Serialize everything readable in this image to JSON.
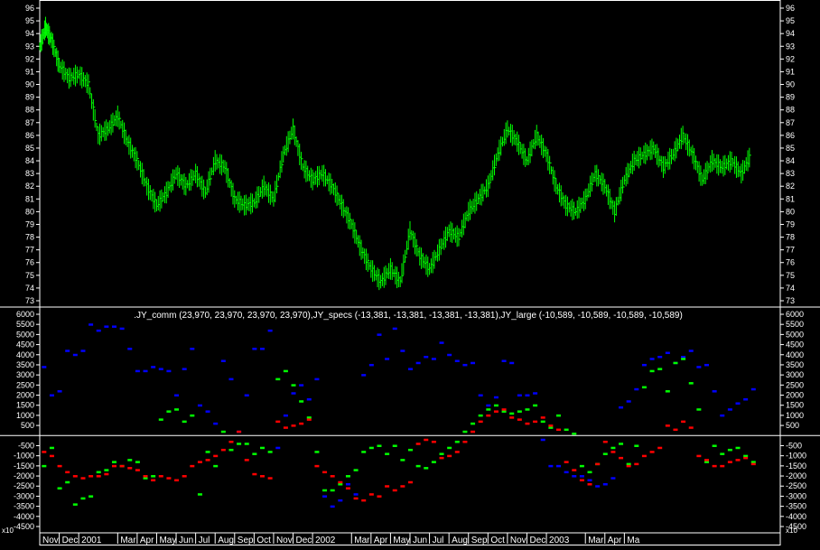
{
  "chart_data": [
    {
      "type": "line",
      "ylim": [
        73,
        96
      ],
      "y_ticks": [
        73,
        74,
        75,
        76,
        77,
        78,
        79,
        80,
        81,
        82,
        83,
        84,
        85,
        86,
        87,
        88,
        89,
        90,
        91,
        92,
        93,
        94,
        95,
        96
      ],
      "x_range": [
        0,
        38
      ],
      "color": "#00ff00",
      "series": [
        {
          "x": [
            0,
            0.3,
            0.6,
            1,
            1.5,
            2,
            2.5,
            3,
            3.5,
            4,
            4.5,
            5,
            5.5,
            6,
            6.5,
            7,
            7.5,
            8,
            8.5,
            9,
            9.5,
            10,
            10.5,
            11,
            11.5,
            12,
            12.5,
            13,
            13.5,
            14,
            14.5,
            15,
            15.5,
            16,
            16.5,
            17,
            17.5,
            18,
            18.5,
            19,
            19.5,
            20,
            20.5,
            21,
            21.5,
            22,
            22.5,
            23,
            23.5,
            24,
            24.5,
            25,
            25.5,
            26,
            26.5,
            27,
            27.5,
            28,
            28.5,
            29,
            29.5,
            30,
            30.5,
            31,
            31.5,
            32,
            32.5,
            33,
            33.5,
            34,
            34.5,
            35,
            35.5,
            36,
            36.5
          ],
          "y": [
            93,
            94.5,
            93.5,
            91.5,
            90.5,
            90.8,
            90,
            86,
            86.5,
            87.5,
            85.5,
            84,
            82,
            80.5,
            81.5,
            83,
            82,
            83,
            81.5,
            84,
            83.5,
            81,
            80.5,
            80.7,
            82,
            81,
            84.5,
            86.5,
            83.5,
            82.5,
            83,
            82,
            80.5,
            79,
            77,
            75.5,
            74.5,
            75.5,
            74.5,
            78.5,
            76.5,
            75.5,
            77,
            78.5,
            78,
            80,
            81,
            82,
            84.5,
            86.5,
            85.5,
            84,
            86,
            84.5,
            82,
            80.5,
            80,
            81,
            83,
            82,
            80,
            82.5,
            84,
            84.5,
            85,
            83.5,
            84.5,
            86,
            84.5,
            82.5,
            84,
            83.5,
            84,
            83,
            84.5
          ]
        }
      ]
    },
    {
      "type": "scatter",
      "title": ".JY_comm (23,970, 23,970, 23,970, 23,970),JY_specs (-13,381, -13,381, -13,381, -13,381),JY_large (-10,589, -10,589, -10,589, -10,589)",
      "ylim": [
        -4500,
        6000
      ],
      "y_ticks": [
        6000,
        5500,
        5000,
        4500,
        4000,
        3500,
        3000,
        2500,
        2000,
        1500,
        1000,
        500,
        -500,
        -1000,
        -1500,
        -2000,
        -2500,
        -3000,
        -3500,
        -4000,
        -4500
      ],
      "y_tick_labels": [
        "6000",
        "5500",
        "5000",
        "4500",
        "4000",
        "3500",
        "3000",
        "2500",
        "2000",
        "1500",
        "1000",
        "500",
        "-500",
        "-1000",
        "-1500",
        "-2000",
        "-2500",
        "-3000",
        "-3500",
        "-4000",
        "-4500"
      ],
      "scale_label": "x10",
      "x_range": [
        0,
        38
      ],
      "series": [
        {
          "name": "JY_comm",
          "color": "#0000ff",
          "x": [
            0.2,
            0.6,
            1.0,
            1.4,
            1.8,
            2.2,
            2.6,
            3.0,
            3.4,
            3.8,
            4.2,
            4.6,
            5.0,
            5.4,
            5.8,
            6.2,
            6.6,
            7.0,
            7.4,
            7.8,
            8.2,
            8.6,
            9.0,
            9.4,
            9.8,
            10.2,
            10.6,
            11.0,
            11.4,
            11.8,
            12.2,
            12.6,
            13.0,
            13.4,
            13.8,
            14.2,
            14.6,
            15.0,
            15.4,
            15.8,
            16.2,
            16.6,
            17.0,
            17.4,
            17.8,
            18.2,
            18.6,
            19.0,
            19.4,
            19.8,
            20.2,
            20.6,
            21.0,
            21.4,
            21.8,
            22.2,
            22.6,
            23.0,
            23.4,
            23.8,
            24.2,
            24.6,
            25.0,
            25.4,
            25.8,
            26.2,
            26.6,
            27.0,
            27.4,
            27.8,
            28.2,
            28.6,
            29.0,
            29.4,
            29.8,
            30.2,
            30.6,
            31.0,
            31.4,
            31.8,
            32.2,
            32.6,
            33.0,
            33.4,
            33.8,
            34.2,
            34.6,
            35.0,
            35.4,
            35.8,
            36.2,
            36.6
          ],
          "y": [
            3400,
            2000,
            2200,
            4200,
            4000,
            4200,
            5500,
            5200,
            5400,
            5400,
            5300,
            4300,
            3200,
            3200,
            3400,
            3300,
            3200,
            2000,
            3300,
            4300,
            1500,
            1200,
            600,
            3700,
            2800,
            200,
            2000,
            4300,
            4300,
            5200,
            -600,
            1000,
            2100,
            2500,
            1800,
            2800,
            -3000,
            -3500,
            -3200,
            -2400,
            -2900,
            3000,
            3500,
            5000,
            3800,
            5300,
            4200,
            3300,
            3600,
            3900,
            3800,
            4600,
            4000,
            3700,
            3500,
            3600,
            2000,
            1500,
            1900,
            3700,
            3600,
            2000,
            2000,
            2100,
            -200,
            -1500,
            -1500,
            -1800,
            -2000,
            -2000,
            -2200,
            -2500,
            -2400,
            -2100,
            1400,
            1700,
            2300,
            3500,
            3800,
            3900,
            4100,
            3600,
            3900,
            4200,
            3400,
            3500,
            2200,
            1000,
            1300,
            1600,
            1800,
            2300
          ]
        },
        {
          "name": "JY_specs",
          "color": "#00ff00",
          "x": [
            0.2,
            0.6,
            1.0,
            1.4,
            1.8,
            2.2,
            2.6,
            3.0,
            3.4,
            3.8,
            4.2,
            4.6,
            5.0,
            5.4,
            5.8,
            6.2,
            6.6,
            7.0,
            7.4,
            7.8,
            8.2,
            8.6,
            9.0,
            9.4,
            9.8,
            10.2,
            10.6,
            11.0,
            11.4,
            11.8,
            12.2,
            12.6,
            13.0,
            13.4,
            13.8,
            14.2,
            14.6,
            15.0,
            15.4,
            15.8,
            16.2,
            16.6,
            17.0,
            17.4,
            17.8,
            18.2,
            18.6,
            19.0,
            19.4,
            19.8,
            20.2,
            20.6,
            21.0,
            21.4,
            21.8,
            22.2,
            22.6,
            23.0,
            23.4,
            23.8,
            24.2,
            24.6,
            25.0,
            25.4,
            25.8,
            26.2,
            26.6,
            27.0,
            27.4,
            27.8,
            28.2,
            28.6,
            29.0,
            29.4,
            29.8,
            30.2,
            30.6,
            31.0,
            31.4,
            31.8,
            32.2,
            32.6,
            33.0,
            33.4,
            33.8,
            34.2,
            34.6,
            35.0,
            35.4,
            35.8,
            36.2,
            36.6
          ],
          "y": [
            -1500,
            -600,
            -2600,
            -2300,
            -3400,
            -3100,
            -3000,
            -1800,
            -1700,
            -1300,
            -1500,
            -1200,
            -1300,
            -2100,
            -2000,
            800,
            1200,
            1300,
            700,
            1000,
            -2900,
            -800,
            -1500,
            200,
            -700,
            -400,
            -400,
            -900,
            -600,
            -800,
            2800,
            3200,
            2500,
            1700,
            900,
            -800,
            -2700,
            -2700,
            -2400,
            -2000,
            -1700,
            -800,
            -600,
            -500,
            -900,
            -500,
            -1200,
            -700,
            -1500,
            -1600,
            -1300,
            -900,
            -600,
            -300,
            200,
            600,
            1000,
            1300,
            1500,
            1200,
            1100,
            1200,
            1300,
            1500,
            700,
            400,
            1000,
            300,
            100,
            -1500,
            -1800,
            -1400,
            -900,
            -600,
            -400,
            -1400,
            -500,
            2400,
            3200,
            3300,
            2200,
            3600,
            3800,
            2600,
            1300,
            -1300,
            -500,
            -900,
            -700,
            -600,
            -1000,
            -1300
          ]
        },
        {
          "name": "JY_large",
          "color": "#ff0000",
          "x": [
            0.2,
            0.6,
            1.0,
            1.4,
            1.8,
            2.2,
            2.6,
            3.0,
            3.4,
            3.8,
            4.2,
            4.6,
            5.0,
            5.4,
            5.8,
            6.2,
            6.6,
            7.0,
            7.4,
            7.8,
            8.2,
            8.6,
            9.0,
            9.4,
            9.8,
            10.2,
            10.6,
            11.0,
            11.4,
            11.8,
            12.2,
            12.6,
            13.0,
            13.4,
            13.8,
            14.2,
            14.6,
            15.0,
            15.4,
            15.8,
            16.2,
            16.6,
            17.0,
            17.4,
            17.8,
            18.2,
            18.6,
            19.0,
            19.4,
            19.8,
            20.2,
            20.6,
            21.0,
            21.4,
            21.8,
            22.2,
            22.6,
            23.0,
            23.4,
            23.8,
            24.2,
            24.6,
            25.0,
            25.4,
            25.8,
            26.2,
            26.6,
            27.0,
            27.4,
            27.8,
            28.2,
            28.6,
            29.0,
            29.4,
            29.8,
            30.2,
            30.6,
            31.0,
            31.4,
            31.8,
            32.2,
            32.6,
            33.0,
            33.4,
            33.8,
            34.2,
            34.6,
            35.0,
            35.4,
            35.8,
            36.2,
            36.6
          ],
          "y": [
            -800,
            -1000,
            -1500,
            -1800,
            -2000,
            -2100,
            -2000,
            -2000,
            -1900,
            -1500,
            -1500,
            -1600,
            -1700,
            -2000,
            -2200,
            -2000,
            -2100,
            -2200,
            -2000,
            -1500,
            -1300,
            -1200,
            -1000,
            -700,
            -300,
            200,
            -1200,
            -1900,
            -2000,
            -2100,
            700,
            400,
            500,
            600,
            800,
            -1500,
            -1800,
            -2000,
            -2300,
            -2600,
            -3100,
            -3200,
            -2900,
            -3000,
            -2500,
            -2700,
            -2500,
            -2300,
            -400,
            -200,
            -300,
            -1100,
            -1000,
            -800,
            -300,
            200,
            700,
            1000,
            1200,
            1300,
            900,
            800,
            600,
            700,
            900,
            500,
            300,
            -1300,
            -1700,
            -2200,
            -2400,
            -1400,
            -300,
            -800,
            -1100,
            -1500,
            -1400,
            -1000,
            -800,
            -600,
            500,
            300,
            700,
            400,
            -1000,
            -1200,
            -1500,
            -1500,
            -1300,
            -1200,
            -1100,
            -1400
          ]
        }
      ]
    }
  ],
  "x_axis": {
    "tick_labels": [
      "Nov",
      "Dec",
      "2001",
      "Mar",
      "Apr",
      "May",
      "Jun",
      "Jul",
      "Aug",
      "Sep",
      "Oct",
      "Nov",
      "Dec",
      "2002",
      "Mar",
      "Apr",
      "May",
      "Jun",
      "Jul",
      "Aug",
      "Sep",
      "Oct",
      "Nov",
      "Dec",
      "2003",
      "Mar",
      "Apr",
      "Ma"
    ],
    "tick_positions": [
      0,
      1,
      2,
      4,
      5,
      6,
      7,
      8,
      9,
      10,
      11,
      12,
      13,
      14,
      16,
      17,
      18,
      19,
      20,
      21,
      22,
      23,
      24,
      25,
      26,
      28,
      29,
      30
    ]
  },
  "colors": {
    "background": "#000000",
    "frame": "#ffffff",
    "text": "#ffffff",
    "price": "#00ff00"
  }
}
